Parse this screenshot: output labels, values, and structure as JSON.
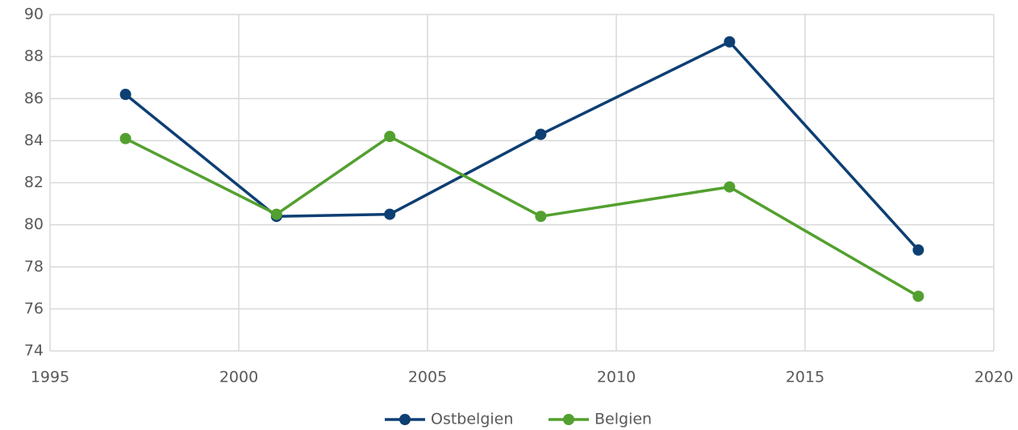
{
  "chart_data": {
    "type": "line",
    "series": [
      {
        "name": "Ostbelgien",
        "color": "#0d3f73",
        "x": [
          1997,
          2001,
          2004,
          2008,
          2013,
          2018
        ],
        "values": [
          86.2,
          80.4,
          80.5,
          84.3,
          88.7,
          78.8
        ]
      },
      {
        "name": "Belgien",
        "color": "#52a02f",
        "x": [
          1997,
          2001,
          2004,
          2008,
          2013,
          2018
        ],
        "values": [
          84.1,
          80.5,
          84.2,
          80.4,
          81.8,
          76.6
        ]
      }
    ],
    "xlim": [
      1995,
      2020
    ],
    "xticks": [
      1995,
      2000,
      2005,
      2010,
      2015,
      2020
    ],
    "ylim": [
      74,
      90
    ],
    "yticks": [
      74,
      76,
      78,
      80,
      82,
      84,
      86,
      88,
      90
    ],
    "grid": true,
    "legend": "bottom"
  }
}
